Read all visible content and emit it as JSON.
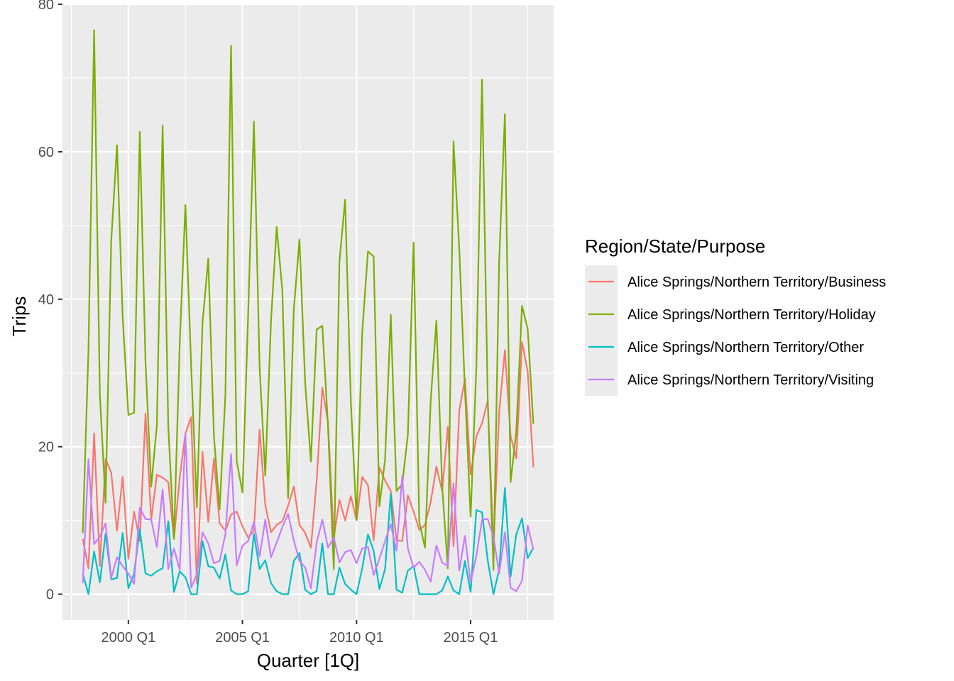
{
  "chart_data": {
    "type": "line",
    "title": "",
    "xlabel": "Quarter [1Q]",
    "ylabel": "Trips",
    "x_ticks": [
      "2000 Q1",
      "2005 Q1",
      "2010 Q1",
      "2015 Q1"
    ],
    "y_ticks": [
      "0",
      "20",
      "40",
      "60",
      "80"
    ],
    "ylim": [
      -3.5,
      80.1
    ],
    "x_start": "1998 Q1",
    "x_end": "2017 Q4",
    "grid": true,
    "legend_title": "Region/State/Purpose",
    "legend_position": "right",
    "series": [
      {
        "name": "Alice Springs/Northern Territory/Business",
        "color": "#F8766D",
        "values": [
          7.5,
          3.5,
          21.8,
          3.8,
          18.3,
          16.5,
          8.6,
          15.9,
          4.8,
          11.2,
          7.2,
          24.5,
          10.1,
          16.2,
          15.8,
          15.2,
          7.5,
          15.8,
          21.8,
          24.0,
          1.5,
          19.3,
          9.8,
          18.4,
          9.6,
          8.6,
          10.8,
          11.2,
          9.2,
          7.7,
          8.6,
          22.3,
          12.1,
          8.4,
          9.4,
          9.9,
          12.0,
          14.6,
          9.4,
          8.3,
          6.3,
          15.4,
          28.0,
          23.3,
          7.6,
          12.8,
          10.0,
          13.3,
          10.0,
          15.9,
          14.8,
          7.3,
          17.2,
          15.4,
          14.0,
          7.3,
          7.2,
          13.4,
          11.2,
          8.7,
          9.4,
          12.5,
          17.3,
          14.0,
          22.7,
          6.5,
          24.9,
          29.2,
          16.2,
          21.4,
          23.2,
          26.2,
          6.5,
          24.7,
          33.1,
          21.5,
          18.4,
          34.2,
          30.2,
          17.2
        ]
      },
      {
        "name": "Alice Springs/Northern Territory/Holiday",
        "color": "#7CAE00",
        "values": [
          8.3,
          33.0,
          76.5,
          27.0,
          12.4,
          47.9,
          60.9,
          37.6,
          24.3,
          24.6,
          62.7,
          31.5,
          14.6,
          22.9,
          63.6,
          22.7,
          7.5,
          34.0,
          52.8,
          31.0,
          11.8,
          36.8,
          45.5,
          21.4,
          11.5,
          27.0,
          74.4,
          18.0,
          13.8,
          37.9,
          64.1,
          30.9,
          16.1,
          37.1,
          49.8,
          41.1,
          13.0,
          38.6,
          48.1,
          28.5,
          18.0,
          35.9,
          36.4,
          22.8,
          3.4,
          45.1,
          53.5,
          26.0,
          10.1,
          35.5,
          46.5,
          45.8,
          11.9,
          18.3,
          37.9,
          14.0,
          14.9,
          21.6,
          47.7,
          9.8,
          6.3,
          26.3,
          37.1,
          14.7,
          3.5,
          61.4,
          46.9,
          27.7,
          10.5,
          30.8,
          69.8,
          26.5,
          3.3,
          45.1,
          65.1,
          15.2,
          22.0,
          39.1,
          36.0,
          23.1
        ]
      },
      {
        "name": "Alice Springs/Northern Territory/Other",
        "color": "#00BFC4",
        "values": [
          2.8,
          0.0,
          5.8,
          1.6,
          8.2,
          2.0,
          2.2,
          8.3,
          0.8,
          2.8,
          8.8,
          2.8,
          2.5,
          3.1,
          3.5,
          9.9,
          0.3,
          3.1,
          2.3,
          0.0,
          0.0,
          7.2,
          3.8,
          3.6,
          2.1,
          5.4,
          0.5,
          0.0,
          0.0,
          0.4,
          8.2,
          3.4,
          4.6,
          1.5,
          0.4,
          0.0,
          0.0,
          4.5,
          5.6,
          0.6,
          0.0,
          0.4,
          6.9,
          0.0,
          0.0,
          3.6,
          1.4,
          0.6,
          0.0,
          3.5,
          8.1,
          5.9,
          0.7,
          3.4,
          13.6,
          0.6,
          0.2,
          3.2,
          3.8,
          0.0,
          0.0,
          0.0,
          0.0,
          0.5,
          2.4,
          0.5,
          0.0,
          4.5,
          0.3,
          11.4,
          11.1,
          4.6,
          0.0,
          3.3,
          14.4,
          2.4,
          8.1,
          10.3,
          4.9,
          6.3
        ]
      },
      {
        "name": "Alice Springs/Northern Territory/Visiting",
        "color": "#C77CFF",
        "values": [
          1.5,
          18.3,
          6.8,
          7.8,
          9.6,
          2.2,
          5.0,
          3.8,
          2.8,
          1.4,
          11.7,
          10.2,
          10.1,
          6.4,
          14.2,
          3.4,
          6.2,
          3.3,
          21.7,
          0.9,
          2.7,
          8.4,
          6.9,
          4.2,
          4.5,
          8.1,
          19.0,
          3.9,
          6.6,
          7.2,
          9.8,
          5.1,
          10.1,
          5.0,
          7.0,
          9.1,
          10.9,
          7.3,
          4.5,
          3.6,
          0.8,
          7.0,
          10.1,
          6.3,
          7.7,
          4.3,
          5.7,
          6.0,
          4.2,
          6.2,
          6.4,
          2.6,
          4.8,
          7.2,
          9.5,
          5.9,
          16.0,
          6.2,
          3.6,
          4.4,
          3.3,
          1.7,
          6.6,
          4.3,
          3.8,
          15.0,
          3.2,
          7.9,
          1.6,
          5.2,
          10.1,
          10.2,
          7.8,
          2.8,
          8.4,
          0.9,
          0.4,
          1.8,
          9.3,
          6.1
        ]
      }
    ]
  }
}
